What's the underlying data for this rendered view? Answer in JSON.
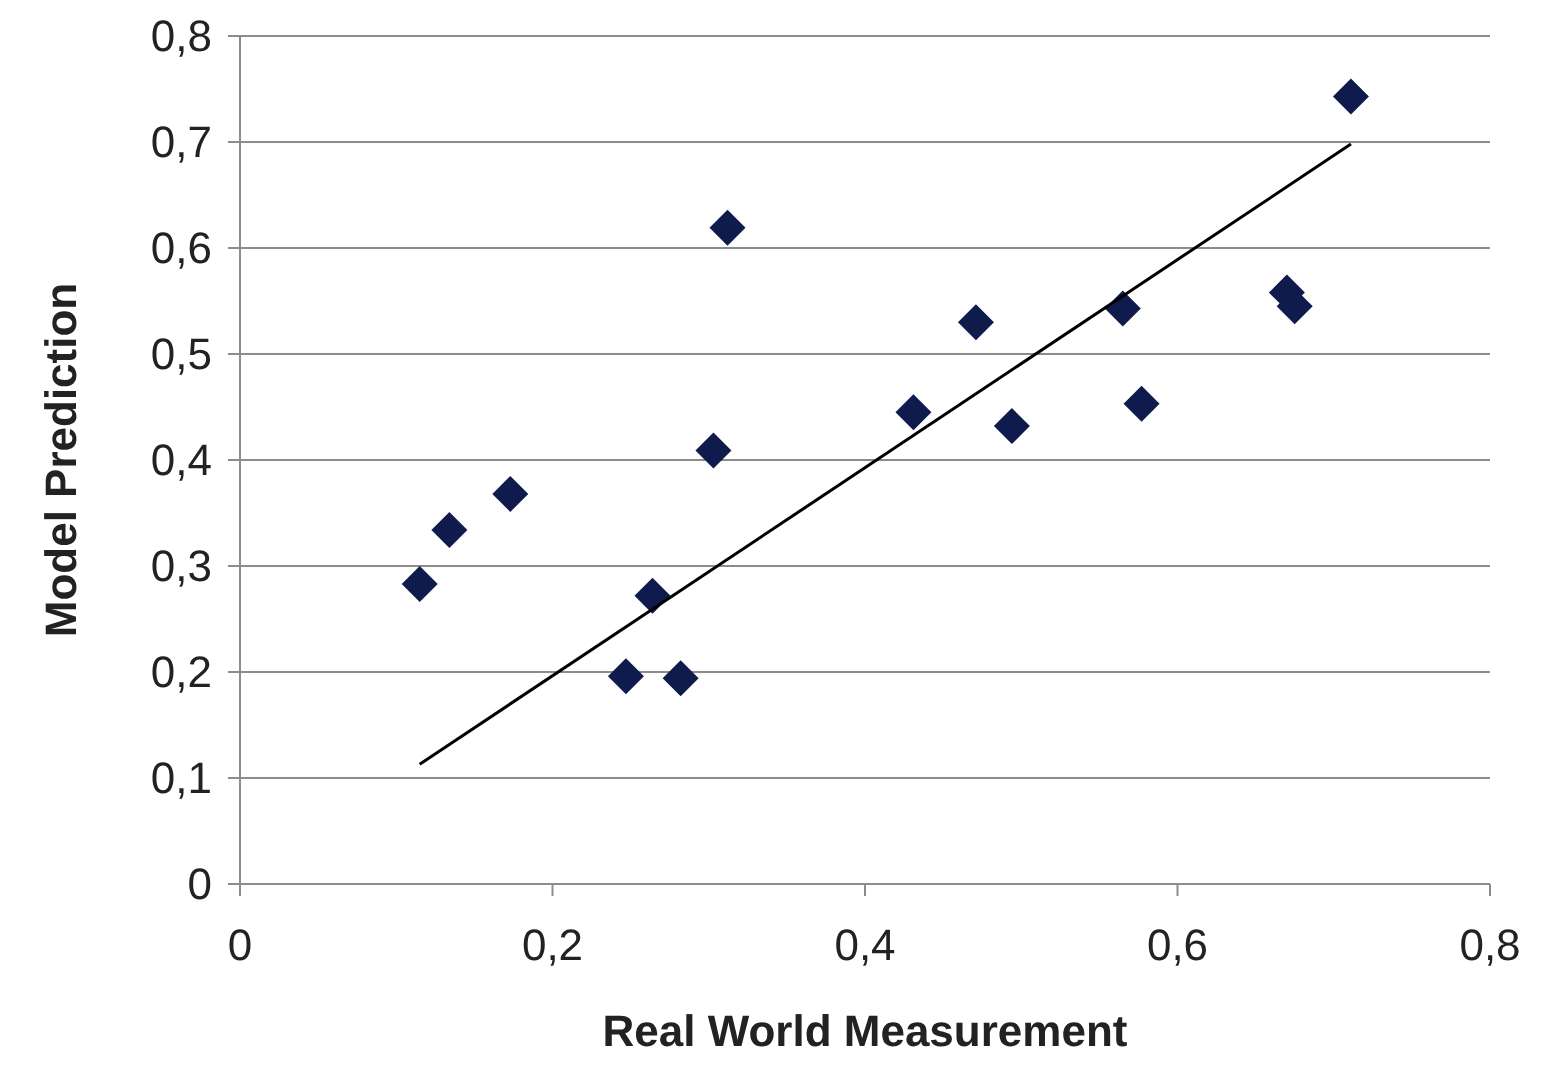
{
  "chart_data": {
    "type": "scatter",
    "xlabel": "Real World Measurement",
    "ylabel": "Model Prediction",
    "xlim": [
      0,
      0.8
    ],
    "ylim": [
      0,
      0.8
    ],
    "xticks": [
      {
        "value": 0,
        "label": "0"
      },
      {
        "value": 0.2,
        "label": "0,2"
      },
      {
        "value": 0.4,
        "label": "0,4"
      },
      {
        "value": 0.6,
        "label": "0,6"
      },
      {
        "value": 0.8,
        "label": "0,8"
      }
    ],
    "yticks": [
      {
        "value": 0,
        "label": "0"
      },
      {
        "value": 0.1,
        "label": "0,1"
      },
      {
        "value": 0.2,
        "label": "0,2"
      },
      {
        "value": 0.3,
        "label": "0,3"
      },
      {
        "value": 0.4,
        "label": "0,4"
      },
      {
        "value": 0.5,
        "label": "0,5"
      },
      {
        "value": 0.6,
        "label": "0,6"
      },
      {
        "value": 0.7,
        "label": "0,7"
      },
      {
        "value": 0.8,
        "label": "0,8"
      }
    ],
    "grid": "y",
    "series": [
      {
        "color": "#0f1b4d",
        "marker": "diamond",
        "x": [
          0.115,
          0.134,
          0.173,
          0.247,
          0.264,
          0.282,
          0.303,
          0.312,
          0.431,
          0.471,
          0.494,
          0.565,
          0.577,
          0.67,
          0.675,
          0.711
        ],
        "values": [
          0.283,
          0.334,
          0.368,
          0.196,
          0.272,
          0.194,
          0.409,
          0.619,
          0.445,
          0.53,
          0.432,
          0.543,
          0.453,
          0.558,
          0.545,
          0.743
        ]
      },
      {
        "type": "line",
        "color": "#000000",
        "marker": "none",
        "line_style": "solid",
        "x": [
          0.115,
          0.711
        ],
        "values": [
          0.113,
          0.698
        ]
      }
    ]
  }
}
